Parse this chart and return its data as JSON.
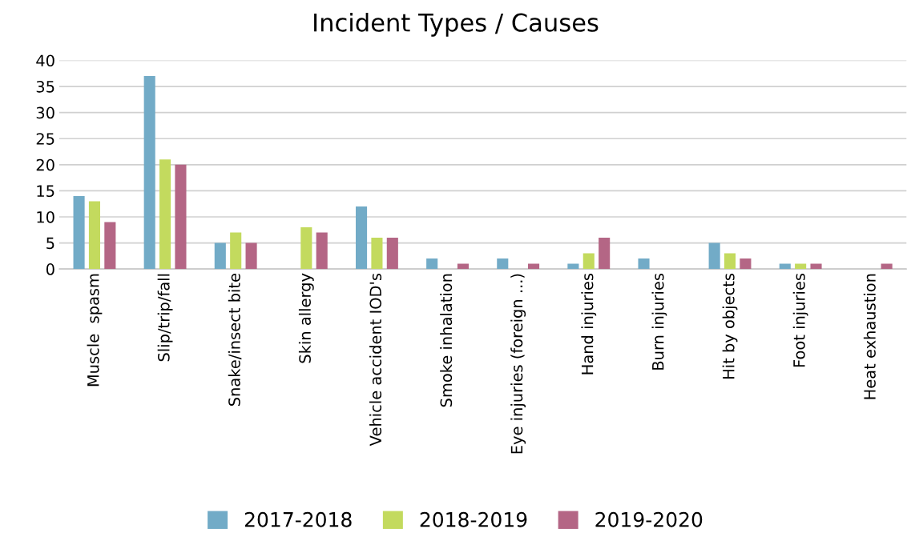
{
  "chart_data": {
    "type": "bar",
    "title": "Incident Types / Causes",
    "categories": [
      "Muscle  spasm",
      "Slip/trip/fall",
      "Snake/insect bite",
      "Skin allergy",
      "Vehicle accident IOD's",
      "Smoke inhalation",
      "Eye injuries (foreign ...)",
      "Hand injuries",
      "Burn injuries",
      "Hit by objects",
      "Foot injuries",
      "Heat exhaustion"
    ],
    "series": [
      {
        "name": "2017-2018",
        "color": "#72abc7",
        "values": [
          14,
          37,
          5,
          0,
          12,
          2,
          2,
          1,
          2,
          5,
          1,
          0
        ]
      },
      {
        "name": "2018-2019",
        "color": "#c3da5e",
        "values": [
          13,
          21,
          7,
          8,
          6,
          0,
          0,
          3,
          0,
          3,
          1,
          0
        ]
      },
      {
        "name": "2019-2020",
        "color": "#b46685",
        "values": [
          9,
          20,
          5,
          7,
          6,
          1,
          1,
          6,
          0,
          2,
          1,
          1
        ]
      }
    ],
    "ylim": [
      0,
      40
    ],
    "yticks": [
      0,
      5,
      10,
      15,
      20,
      25,
      30,
      35,
      40
    ],
    "grid": "y",
    "legend": "bottom"
  }
}
